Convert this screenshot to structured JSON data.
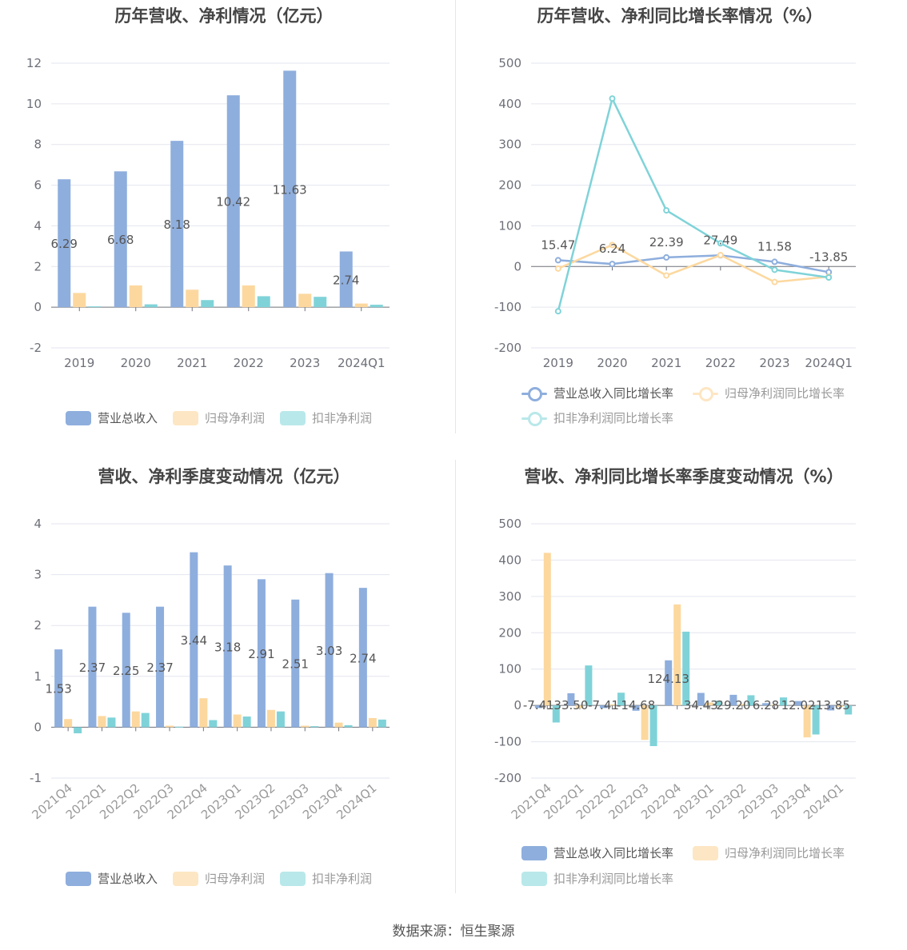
{
  "source_text": "数据来源：恒生聚源",
  "colors": {
    "revenue": "#8eaedd",
    "net_profit": "#fcd89f",
    "deducted_profit": "#7fd3d8",
    "deducted_profit_legend": "#b9e8ea",
    "net_profit_legend": "#fde6c3",
    "grid": "#e3e6ef",
    "axis": "#6e7079",
    "label": "#555555"
  },
  "charts": [
    {
      "title": "历年营收、净利情况（亿元）",
      "legend": [
        "营业总收入",
        "归母净利润",
        "扣非净利润"
      ],
      "chart_data": {
        "type": "bar",
        "categories": [
          "2019",
          "2020",
          "2021",
          "2022",
          "2023",
          "2024Q1"
        ],
        "series": [
          {
            "name": "营业总收入",
            "values": [
              6.29,
              6.68,
              8.18,
              10.42,
              11.63,
              2.74
            ],
            "labels": [
              "6.29",
              "6.68",
              "8.18",
              "10.42",
              "11.63",
              "2.74"
            ]
          },
          {
            "name": "归母净利润",
            "values": [
              0.7,
              1.07,
              0.86,
              1.07,
              0.66,
              0.18
            ]
          },
          {
            "name": "扣非净利润",
            "values": [
              0.04,
              0.14,
              0.35,
              0.54,
              0.51,
              0.12
            ]
          }
        ],
        "y_ticks": [
          "12",
          "10",
          "8",
          "6",
          "4",
          "2",
          "0",
          "-2"
        ],
        "ylim": [
          -2,
          12
        ]
      }
    },
    {
      "title": "历年营收、净利同比增长率情况（%）",
      "legend": [
        "营业总收入同比增长率",
        "归母净利润同比增长率",
        "扣非净利润同比增长率"
      ],
      "chart_data": {
        "type": "line",
        "categories": [
          "2019",
          "2020",
          "2021",
          "2022",
          "2023",
          "2024Q1"
        ],
        "series": [
          {
            "name": "营业总收入同比增长率",
            "values": [
              15.47,
              6.24,
              22.39,
              27.49,
              11.58,
              -13.85
            ],
            "labels": [
              "15.47",
              "6.24",
              "22.39",
              "27.49",
              "11.58",
              "-13.85"
            ]
          },
          {
            "name": "归母净利润同比增长率",
            "values": [
              -5,
              53,
              -22,
              28,
              -38,
              -25
            ]
          },
          {
            "name": "扣非净利润同比增长率",
            "values": [
              -110,
              413,
              138,
              57,
              -8,
              -27
            ]
          }
        ],
        "y_ticks": [
          "500",
          "400",
          "300",
          "200",
          "100",
          "0",
          "-100",
          "-200"
        ],
        "ylim": [
          -200,
          500
        ]
      }
    },
    {
      "title": "营收、净利季度变动情况（亿元）",
      "legend": [
        "营业总收入",
        "归母净利润",
        "扣非净利润"
      ],
      "chart_data": {
        "type": "bar",
        "categories": [
          "2021Q4",
          "2022Q1",
          "2022Q2",
          "2022Q3",
          "2022Q4",
          "2023Q1",
          "2023Q2",
          "2023Q3",
          "2023Q4",
          "2024Q1"
        ],
        "series": [
          {
            "name": "营业总收入",
            "values": [
              1.53,
              2.37,
              2.25,
              2.37,
              3.44,
              3.18,
              2.91,
              2.51,
              3.03,
              2.74
            ],
            "labels": [
              "1.53",
              "2.37",
              "2.25",
              "2.37",
              "3.44",
              "3.18",
              "2.91",
              "2.51",
              "3.03",
              "2.74"
            ]
          },
          {
            "name": "归母净利润",
            "values": [
              0.16,
              0.22,
              0.31,
              0.03,
              0.57,
              0.25,
              0.34,
              0.03,
              0.09,
              0.18
            ]
          },
          {
            "name": "扣非净利润",
            "values": [
              -0.12,
              0.19,
              0.28,
              0.01,
              0.14,
              0.21,
              0.31,
              0.02,
              0.04,
              0.15
            ]
          }
        ],
        "y_ticks": [
          "4",
          "3",
          "2",
          "1",
          "0",
          "-1"
        ],
        "ylim": [
          -1,
          4
        ]
      }
    },
    {
      "title": "营收、净利同比增长率季度变动情况（%）",
      "legend": [
        "营业总收入同比增长率",
        "归母净利润同比增长率",
        "扣非净利润同比增长率"
      ],
      "chart_data": {
        "type": "bar",
        "categories": [
          "2021Q4",
          "2022Q1",
          "2022Q2",
          "2022Q3",
          "2022Q4",
          "2023Q1",
          "2023Q2",
          "2023Q3",
          "2023Q4",
          "2024Q1"
        ],
        "series": [
          {
            "name": "营业总收入同比增长率",
            "values": [
              -7.41,
              33.5,
              -7.41,
              -14.68,
              124.13,
              34.43,
              29.2,
              6.28,
              12.02,
              -13.85
            ],
            "labels": [
              "-7.41",
              "33.50",
              "-7.41",
              "-14.68",
              "124.13",
              "34.43",
              "29.20",
              "6.28",
              "12.02",
              "-13.85"
            ]
          },
          {
            "name": "归母净利润同比增长率",
            "values": [
              420,
              -8,
              3,
              -95,
              278,
              8,
              4,
              2,
              -88,
              -4
            ]
          },
          {
            "name": "扣非净利润同比增长率",
            "values": [
              -47,
              110,
              35,
              -112,
              203,
              13,
              28,
              22,
              -80,
              -25
            ]
          }
        ],
        "y_ticks": [
          "500",
          "400",
          "300",
          "200",
          "100",
          "0",
          "-100",
          "-200"
        ],
        "ylim": [
          -200,
          500
        ]
      }
    }
  ]
}
